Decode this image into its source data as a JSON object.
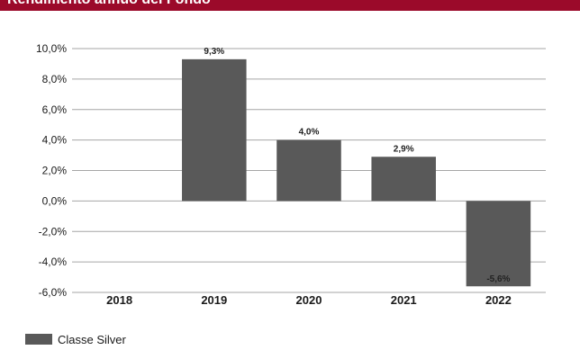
{
  "header": {
    "title": "Rendimento annuo del Fondo"
  },
  "colors": {
    "banner": "#9b0a2a",
    "bar": "#595959",
    "grid": "#a6a6a6"
  },
  "chart_data": {
    "type": "bar",
    "categories": [
      "2018",
      "2019",
      "2020",
      "2021",
      "2022"
    ],
    "series": [
      {
        "name": "Classe Silver",
        "values": [
          null,
          9.3,
          4.0,
          2.9,
          -5.6
        ]
      }
    ],
    "data_labels": [
      "",
      "9,3%",
      "4,0%",
      "2,9%",
      "-5,6%"
    ],
    "y_ticks": [
      10,
      8,
      6,
      4,
      2,
      0,
      -2,
      -4,
      -6
    ],
    "y_tick_labels": [
      "10,0%",
      "8,0%",
      "6,0%",
      "4,0%",
      "2,0%",
      "0,0%",
      "-2,0%",
      "-4,0%",
      "-6,0%"
    ],
    "ylim": [
      -6,
      10
    ],
    "grid": true,
    "legend_position": "bottom-left"
  }
}
